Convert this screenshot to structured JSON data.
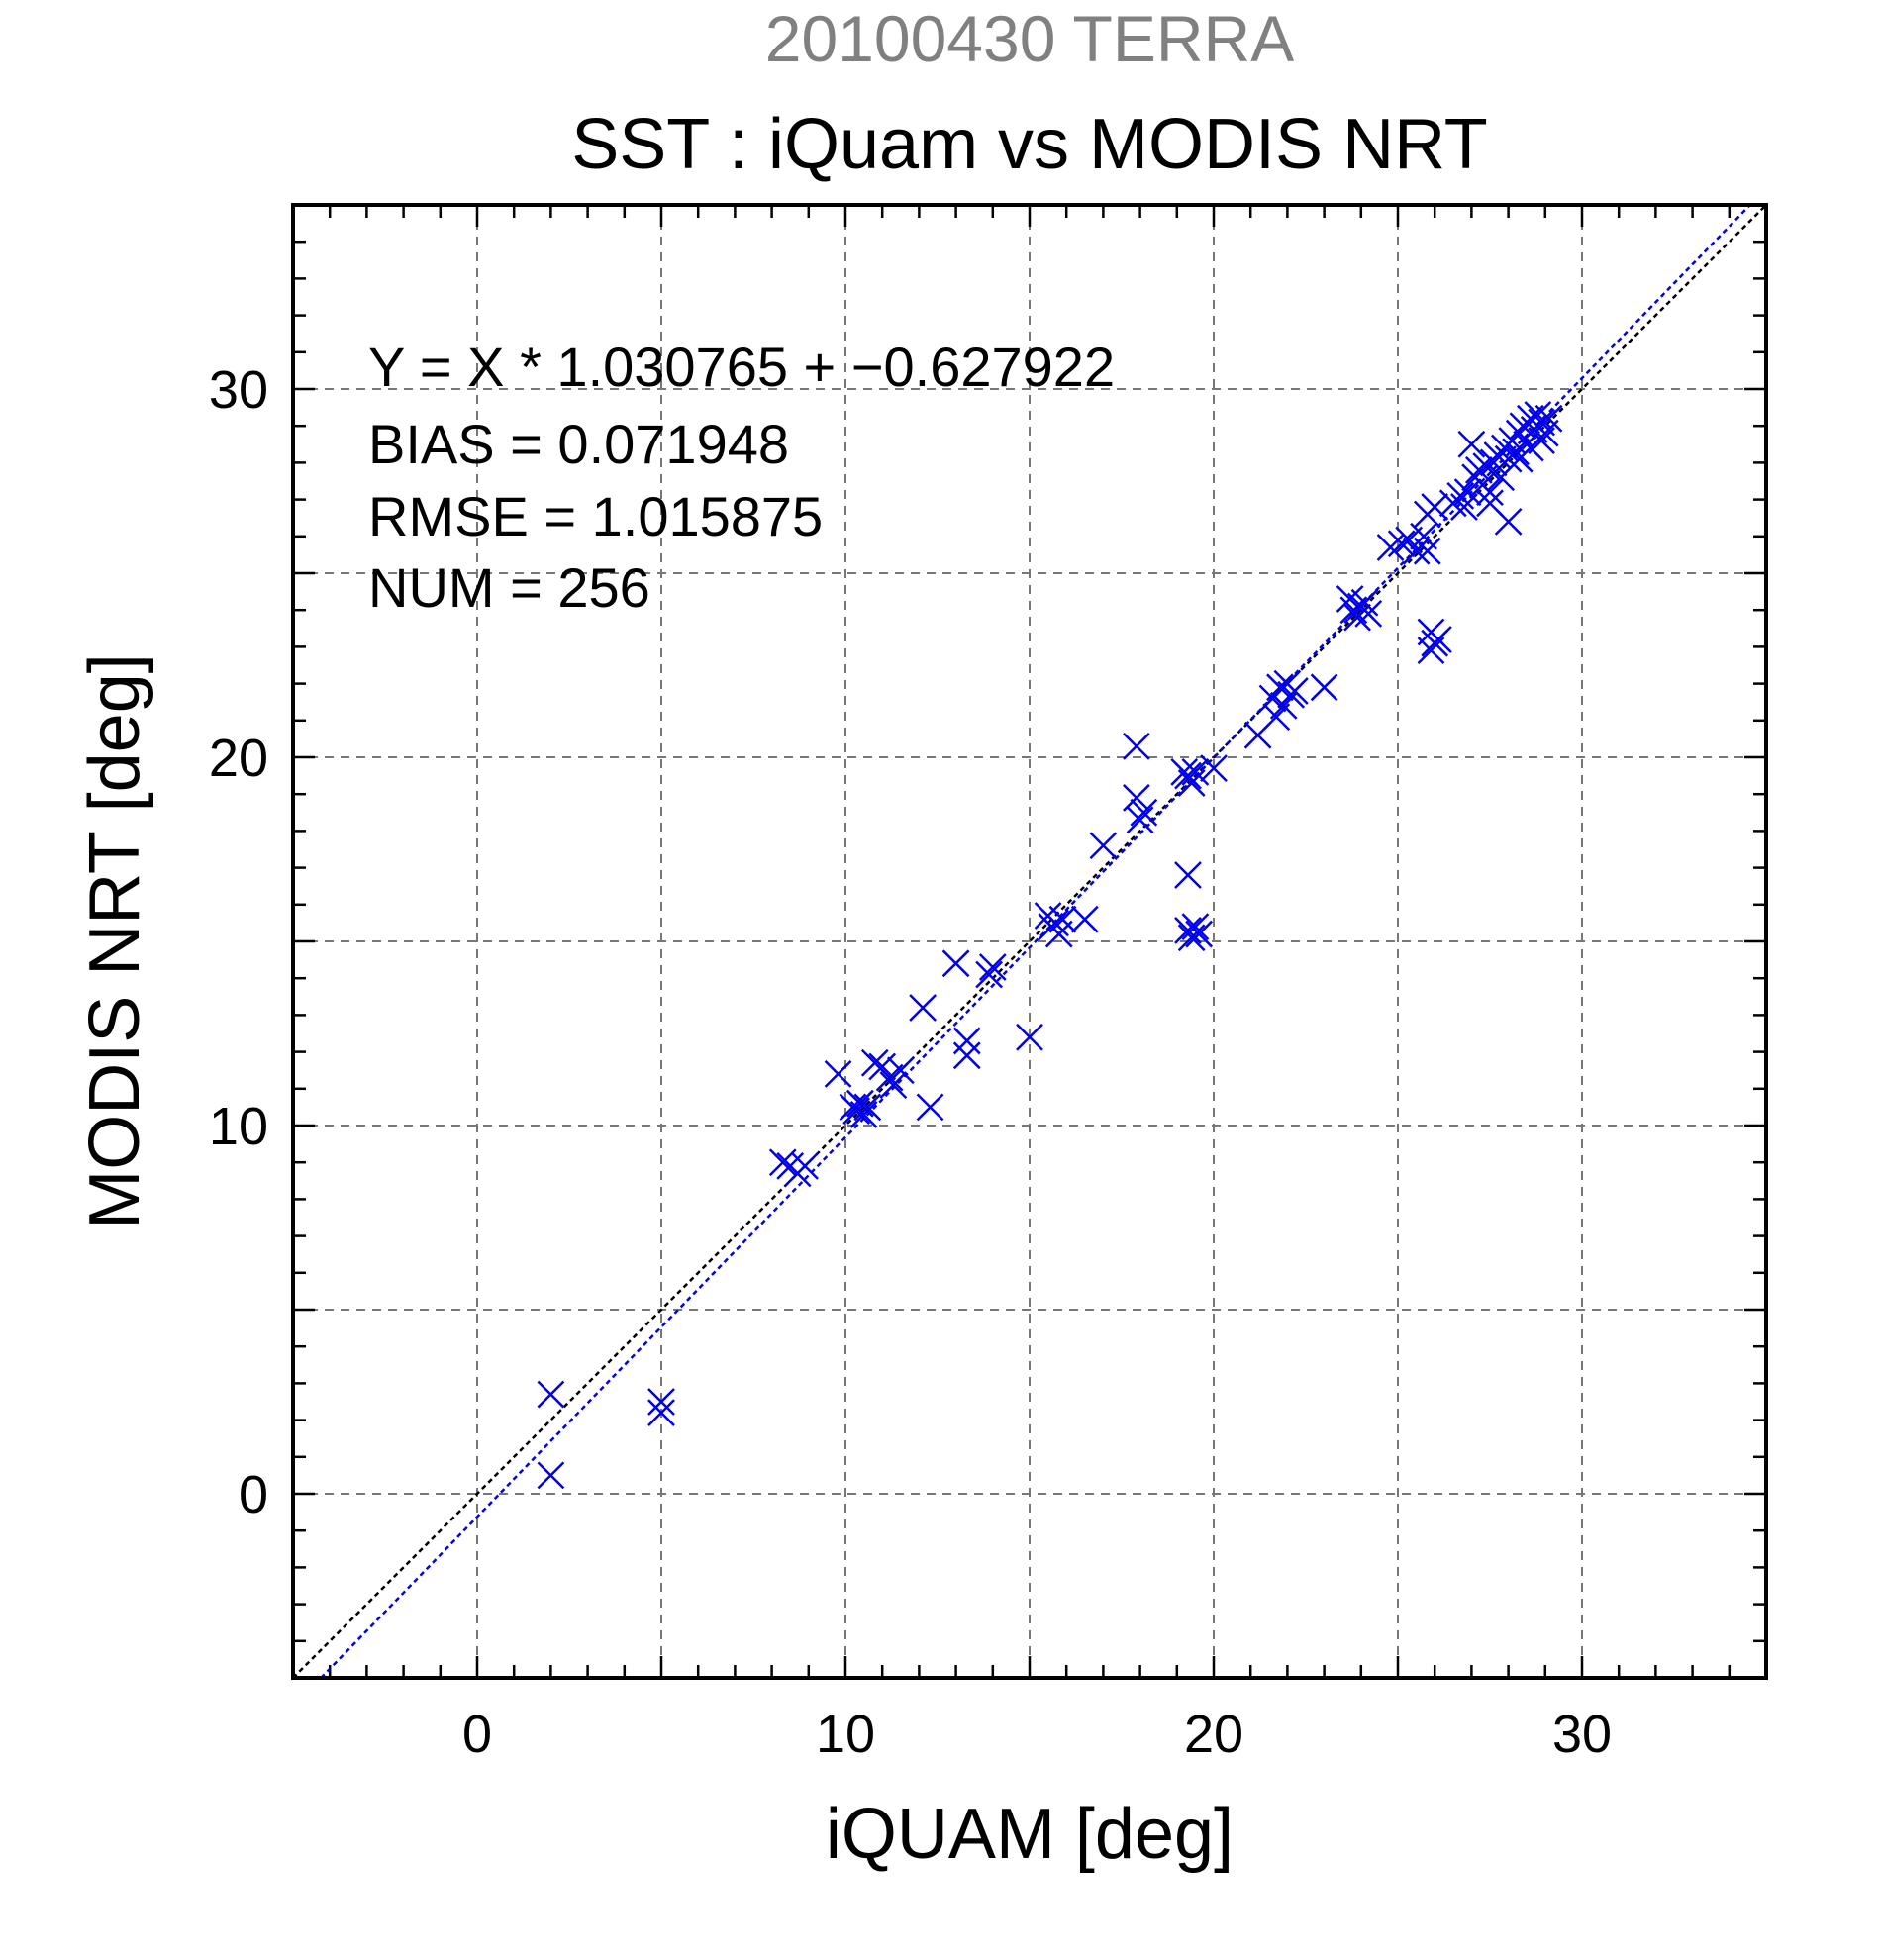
{
  "chart_data": {
    "type": "scatter",
    "title_top": "20100430 TERRA",
    "title": "SST : iQuam vs MODIS NRT",
    "xlabel": "iQUAM [deg]",
    "ylabel": "MODIS NRT [deg]",
    "xlim": [
      -5,
      35
    ],
    "ylim": [
      -5,
      35
    ],
    "xticks": [
      0,
      10,
      20,
      30
    ],
    "yticks": [
      0,
      10,
      20,
      30
    ],
    "grid": true,
    "stats": [
      "Y = X * 1.030765 + −0.627922",
      "BIAS = 0.071948",
      "RMSE = 1.015875",
      "NUM = 256"
    ],
    "lines": [
      {
        "name": "identity",
        "slope": 1.0,
        "intercept": 0.0,
        "color": "#000000"
      },
      {
        "name": "fit",
        "slope": 1.030765,
        "intercept": -0.627922,
        "color": "#0000ee"
      }
    ],
    "marker_color": "#0000ee",
    "marker": "x",
    "points": [
      [
        2.0,
        2.7
      ],
      [
        2.0,
        0.5
      ],
      [
        5.0,
        2.5
      ],
      [
        5.0,
        2.2
      ],
      [
        8.3,
        9.0
      ],
      [
        8.5,
        8.9
      ],
      [
        8.7,
        8.7
      ],
      [
        8.9,
        8.9
      ],
      [
        9.8,
        11.4
      ],
      [
        10.2,
        10.5
      ],
      [
        10.3,
        10.4
      ],
      [
        10.4,
        10.6
      ],
      [
        10.5,
        10.3
      ],
      [
        10.6,
        10.5
      ],
      [
        10.8,
        11.7
      ],
      [
        11.0,
        11.6
      ],
      [
        11.2,
        11.3
      ],
      [
        11.3,
        11.1
      ],
      [
        11.5,
        11.5
      ],
      [
        12.1,
        13.2
      ],
      [
        12.3,
        10.5
      ],
      [
        13.0,
        14.4
      ],
      [
        13.3,
        12.3
      ],
      [
        13.3,
        11.9
      ],
      [
        13.9,
        14.1
      ],
      [
        14.0,
        14.3
      ],
      [
        15.0,
        12.4
      ],
      [
        15.5,
        15.7
      ],
      [
        15.6,
        15.4
      ],
      [
        15.7,
        15.5
      ],
      [
        15.8,
        15.2
      ],
      [
        15.9,
        15.6
      ],
      [
        16.5,
        15.6
      ],
      [
        17.0,
        17.6
      ],
      [
        17.9,
        18.9
      ],
      [
        17.9,
        20.3
      ],
      [
        18.0,
        18.3
      ],
      [
        18.1,
        18.5
      ],
      [
        19.2,
        19.6
      ],
      [
        19.3,
        19.5
      ],
      [
        19.4,
        19.3
      ],
      [
        19.5,
        19.6
      ],
      [
        20.0,
        19.7
      ],
      [
        19.3,
        16.8
      ],
      [
        19.3,
        15.3
      ],
      [
        19.4,
        15.1
      ],
      [
        19.5,
        15.4
      ],
      [
        19.6,
        15.2
      ],
      [
        21.2,
        20.6
      ],
      [
        21.6,
        21.6
      ],
      [
        21.7,
        21.1
      ],
      [
        21.8,
        21.9
      ],
      [
        21.9,
        21.4
      ],
      [
        22.0,
        22.0
      ],
      [
        22.1,
        21.7
      ],
      [
        22.2,
        21.8
      ],
      [
        23.0,
        21.9
      ],
      [
        23.7,
        24.3
      ],
      [
        23.8,
        24.0
      ],
      [
        23.9,
        23.8
      ],
      [
        24.0,
        24.1
      ],
      [
        24.1,
        24.2
      ],
      [
        24.2,
        23.9
      ],
      [
        24.8,
        25.7
      ],
      [
        25.1,
        25.8
      ],
      [
        25.3,
        25.9
      ],
      [
        25.5,
        25.6
      ],
      [
        25.7,
        26.0
      ],
      [
        25.8,
        25.6
      ],
      [
        25.8,
        26.6
      ],
      [
        26.0,
        26.8
      ],
      [
        25.9,
        23.4
      ],
      [
        25.9,
        22.9
      ],
      [
        26.0,
        23.1
      ],
      [
        26.1,
        23.2
      ],
      [
        26.5,
        26.9
      ],
      [
        26.7,
        27.1
      ],
      [
        26.8,
        26.8
      ],
      [
        26.9,
        27.2
      ],
      [
        27.0,
        28.5
      ],
      [
        27.1,
        27.6
      ],
      [
        27.2,
        27.8
      ],
      [
        27.3,
        27.4
      ],
      [
        27.4,
        27.9
      ],
      [
        27.5,
        27.2
      ],
      [
        27.6,
        28.0
      ],
      [
        27.7,
        28.2
      ],
      [
        27.8,
        27.6
      ],
      [
        27.9,
        28.4
      ],
      [
        28.0,
        28.1
      ],
      [
        28.1,
        28.6
      ],
      [
        28.2,
        28.3
      ],
      [
        28.3,
        28.8
      ],
      [
        28.4,
        29.0
      ],
      [
        28.5,
        28.5
      ],
      [
        28.6,
        29.2
      ],
      [
        28.7,
        28.9
      ],
      [
        28.8,
        29.3
      ],
      [
        28.9,
        29.1
      ],
      [
        29.0,
        28.8
      ],
      [
        29.1,
        29.2
      ],
      [
        28.3,
        28.1
      ],
      [
        28.6,
        28.4
      ],
      [
        28.9,
        28.6
      ],
      [
        28.0,
        26.4
      ],
      [
        27.5,
        26.9
      ]
    ]
  }
}
